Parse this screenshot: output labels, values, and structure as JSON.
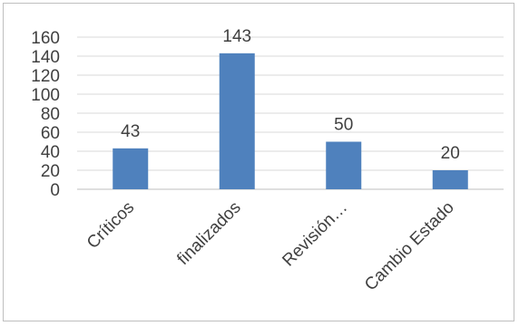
{
  "chart_data": {
    "type": "bar",
    "categories": [
      "Críticos",
      "finalizados",
      "Revisión…",
      "Cambio Estado"
    ],
    "values": [
      43,
      143,
      50,
      20
    ],
    "title": "",
    "xlabel": "",
    "ylabel": "",
    "ylim": [
      0,
      160
    ],
    "yticks": [
      0,
      20,
      40,
      60,
      80,
      100,
      120,
      140,
      160
    ],
    "grid": true,
    "legend": "none",
    "data_labels": true,
    "bar_color": "#4f81bd",
    "grid_color": "#d9d9d9"
  }
}
